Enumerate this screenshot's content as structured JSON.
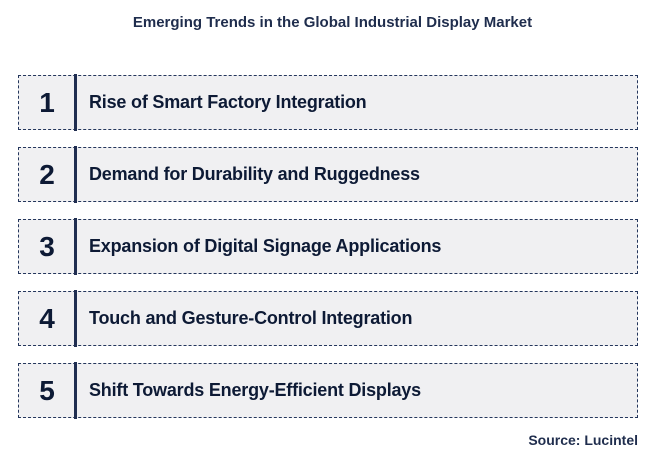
{
  "title": "Emerging Trends in the Global Industrial Display Market",
  "items": [
    {
      "number": "1",
      "label": "Rise of Smart Factory Integration"
    },
    {
      "number": "2",
      "label": "Demand for Durability and Ruggedness"
    },
    {
      "number": "3",
      "label": "Expansion of Digital Signage Applications"
    },
    {
      "number": "4",
      "label": "Touch and Gesture-Control Integration"
    },
    {
      "number": "5",
      "label": "Shift Towards Energy-Efficient Displays"
    }
  ],
  "source": "Source: Lucintel",
  "colors": {
    "text": "#0d1a35",
    "border": "#24365c",
    "box_fill": "#f0f0f2",
    "divider": "#1f2d50"
  }
}
